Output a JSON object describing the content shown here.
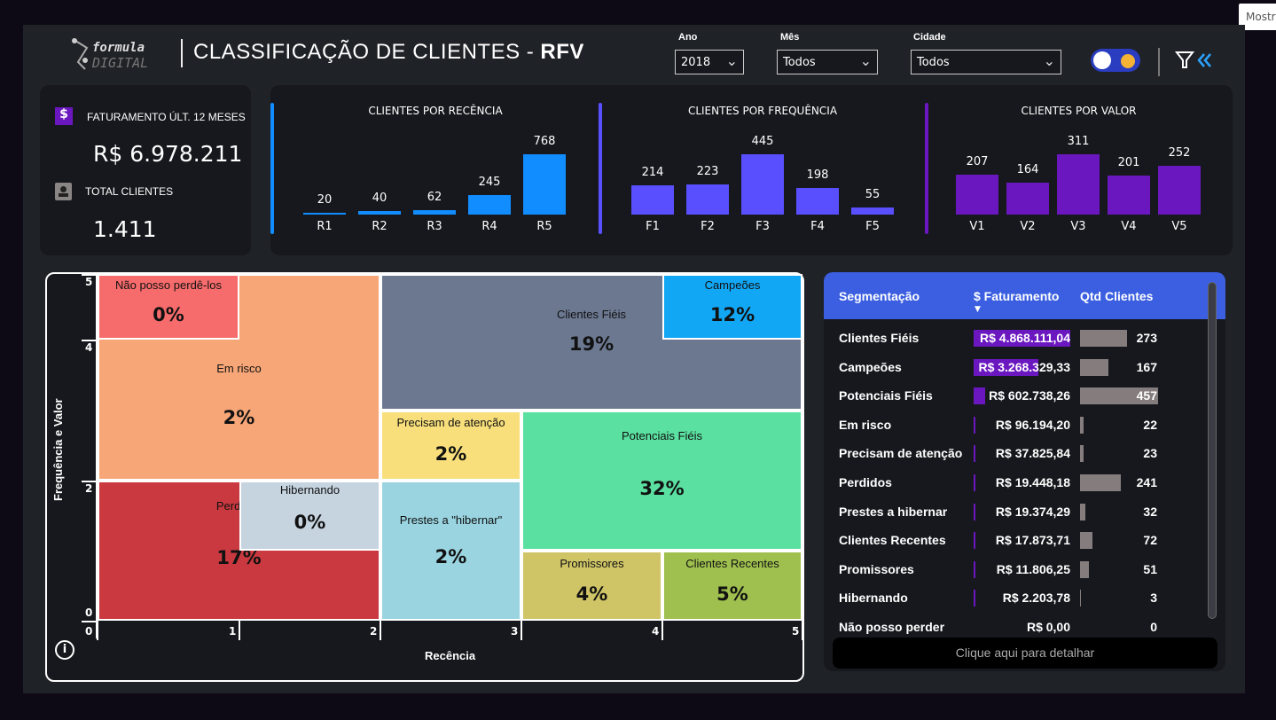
{
  "tooltip": "Mostra",
  "header": {
    "logo_text": "formula DIGITAL",
    "title_main": "CLASSIFICAÇÃO DE CLIENTES - ",
    "title_bold": "RFV"
  },
  "filters": [
    {
      "label": "Ano",
      "value": "2018"
    },
    {
      "label": "Mês",
      "value": "Todos"
    },
    {
      "label": "Cidade",
      "value": "Todos"
    }
  ],
  "theme_toggle": {
    "state": "dark"
  },
  "kpis": {
    "revenue_label": "FATURAMENTO ÚLT. 12 MESES",
    "revenue_value": "R$ 6.978.211",
    "clients_label": "TOTAL CLIENTES",
    "clients_value": "1.411"
  },
  "chart_data": [
    {
      "type": "bar",
      "title": "CLIENTES POR RECÊNCIA",
      "categories": [
        "R1",
        "R2",
        "R3",
        "R4",
        "R5"
      ],
      "values": [
        20,
        40,
        62,
        245,
        768
      ],
      "color": "#118dff"
    },
    {
      "type": "bar",
      "title": "CLIENTES POR FREQUÊNCIA",
      "categories": [
        "F1",
        "F2",
        "F3",
        "F4",
        "F5"
      ],
      "values": [
        214,
        223,
        445,
        198,
        55
      ],
      "color": "#5a4fff"
    },
    {
      "type": "bar",
      "title": "CLIENTES POR VALOR",
      "categories": [
        "V1",
        "V2",
        "V3",
        "V4",
        "V5"
      ],
      "values": [
        207,
        164,
        311,
        201,
        252
      ],
      "color": "#6b17c0"
    }
  ],
  "matrix": {
    "xlabel": "Recência",
    "ylabel": "Frequência e Valor",
    "xticks": [
      "0",
      "1",
      "2",
      "3",
      "4",
      "5"
    ],
    "yticks": [
      "5",
      "4",
      "2",
      "0"
    ],
    "segments": [
      {
        "name": "Em risco",
        "pct": "2%",
        "color": "#f7a677"
      },
      {
        "name": "Não posso perdê-los",
        "pct": "0%",
        "color": "#f66b6b"
      },
      {
        "name": "Perdidos",
        "pct": "17%",
        "color": "#c9393f"
      },
      {
        "name": "Hibernando",
        "pct": "0%",
        "color": "#c6d4e0"
      },
      {
        "name": "Clientes Fiéis",
        "pct": "19%",
        "color": "#6b7890"
      },
      {
        "name": "Campeões",
        "pct": "12%",
        "color": "#12a7f5"
      },
      {
        "name": "Precisam de atenção",
        "pct": "2%",
        "color": "#f8df7b"
      },
      {
        "name": "Potenciais Fiéis",
        "pct": "32%",
        "color": "#5ae0a0"
      },
      {
        "name": "Prestes a \"hibernar\"",
        "pct": "2%",
        "color": "#99d4e0"
      },
      {
        "name": "Promissores",
        "pct": "4%",
        "color": "#cfc466"
      },
      {
        "name": "Clientes Recentes",
        "pct": "5%",
        "color": "#9fc04f"
      }
    ]
  },
  "table": {
    "headers": [
      "Segmentação",
      "$ Faturamento",
      "Qtd Clientes"
    ],
    "sort_indicator": "descending",
    "rows": [
      {
        "seg": "Clientes Fiéis",
        "fat": "R$ 4.868.111,04",
        "fat_num": 4868111.04,
        "qtd": "273"
      },
      {
        "seg": "Campeões",
        "fat": "R$ 3.268.329,33",
        "fat_num": 3268329.33,
        "qtd": "167"
      },
      {
        "seg": "Potenciais Fiéis",
        "fat": "R$ 602.738,26",
        "fat_num": 602738.26,
        "qtd": "457"
      },
      {
        "seg": "Em risco",
        "fat": "R$ 96.194,20",
        "fat_num": 96194.2,
        "qtd": "22"
      },
      {
        "seg": "Precisam de atenção",
        "fat": "R$ 37.825,84",
        "fat_num": 37825.84,
        "qtd": "23"
      },
      {
        "seg": "Perdidos",
        "fat": "R$ 19.448,18",
        "fat_num": 19448.18,
        "qtd": "241"
      },
      {
        "seg": "Prestes a hibernar",
        "fat": "R$ 19.374,29",
        "fat_num": 19374.29,
        "qtd": "32"
      },
      {
        "seg": "Clientes Recentes",
        "fat": "R$ 17.873,71",
        "fat_num": 17873.71,
        "qtd": "72"
      },
      {
        "seg": "Promissores",
        "fat": "R$ 11.806,25",
        "fat_num": 11806.25,
        "qtd": "51"
      },
      {
        "seg": "Hibernando",
        "fat": "R$ 2.203,78",
        "fat_num": 2203.78,
        "qtd": "3"
      },
      {
        "seg": "Não posso perder",
        "fat": "R$ 0,00",
        "fat_num": 0,
        "qtd": "0"
      }
    ],
    "detail_button": "Clique aqui para detalhar"
  }
}
